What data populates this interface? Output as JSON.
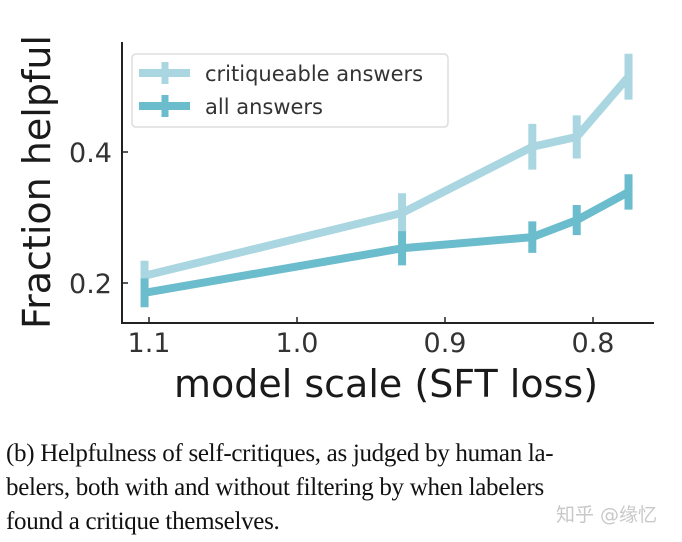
{
  "chart_data": {
    "type": "line",
    "title": "",
    "xlabel": "model scale (SFT loss)",
    "ylabel": "Fraction helpful",
    "x_ticks": [
      "1.1",
      "1.0",
      "0.9",
      "0.8"
    ],
    "x_tick_values": [
      1.1,
      1.0,
      0.9,
      0.8
    ],
    "y_ticks": [
      "0.2",
      "0.4"
    ],
    "y_tick_values": [
      0.2,
      0.4
    ],
    "x_reversed": true,
    "xlim": [
      1.105,
      0.755
    ],
    "ylim": [
      0.14,
      0.56
    ],
    "grid": false,
    "legend_position": "upper left",
    "x": [
      1.103,
      0.929,
      0.841,
      0.811,
      0.776
    ],
    "series": [
      {
        "name": "critiqueable answers",
        "color": "#a9d6e0",
        "values": [
          0.211,
          0.307,
          0.408,
          0.423,
          0.515
        ],
        "error": [
          0.023,
          0.03,
          0.035,
          0.033,
          0.035
        ]
      },
      {
        "name": "all answers",
        "color": "#6bbccc",
        "values": [
          0.185,
          0.253,
          0.27,
          0.296,
          0.339
        ],
        "error": [
          0.022,
          0.026,
          0.024,
          0.023,
          0.027
        ]
      }
    ]
  },
  "caption": {
    "lines": [
      "(b) Helpfulness of self-critiques, as judged by human la-",
      "belers, both with and without filtering by when labelers",
      "found a critique themselves."
    ]
  },
  "watermark": "知乎 @缘忆"
}
